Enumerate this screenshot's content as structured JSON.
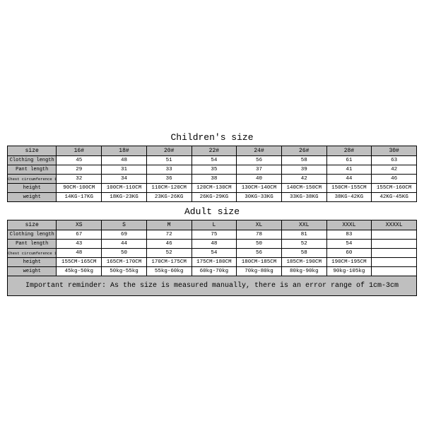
{
  "colors": {
    "header_bg": "#bfbfbf",
    "border": "#000000",
    "background": "#ffffff"
  },
  "children": {
    "title": "Children's size",
    "headers": [
      "size",
      "16#",
      "18#",
      "20#",
      "22#",
      "24#",
      "26#",
      "28#",
      "30#"
    ],
    "rows": [
      {
        "label": "Clothing length",
        "cells": [
          "45",
          "48",
          "51",
          "54",
          "56",
          "58",
          "61",
          "63"
        ]
      },
      {
        "label": "Pant length",
        "cells": [
          "29",
          "31",
          "33",
          "35",
          "37",
          "39",
          "41",
          "42"
        ]
      },
      {
        "label": "Chest circumference 1/2",
        "cells": [
          "32",
          "34",
          "36",
          "38",
          "40",
          "42",
          "44",
          "46"
        ],
        "small": true
      },
      {
        "label": "height",
        "cells": [
          "90CM-100CM",
          "100CM-110CM",
          "110CM-120CM",
          "120CM-130CM",
          "130CM-140CM",
          "140CM-150CM",
          "150CM-155CM",
          "155CM-160CM"
        ]
      },
      {
        "label": "weight",
        "cells": [
          "14KG-17KG",
          "18KG-23KG",
          "23KG-26KG",
          "26KG-29KG",
          "30KG-33KG",
          "33KG-38KG",
          "38KG-42KG",
          "42KG-45KG"
        ]
      }
    ]
  },
  "adult": {
    "title": "Adult size",
    "headers": [
      "size",
      "XS",
      "S",
      "M",
      "L",
      "XL",
      "XXL",
      "XXXL",
      "XXXXL"
    ],
    "rows": [
      {
        "label": "Clothing length",
        "cells": [
          "67",
          "69",
          "72",
          "75",
          "78",
          "81",
          "83",
          ""
        ]
      },
      {
        "label": "Pant length",
        "cells": [
          "43",
          "44",
          "46",
          "48",
          "50",
          "52",
          "54",
          ""
        ]
      },
      {
        "label": "Chest circumference 1/2",
        "cells": [
          "48",
          "50",
          "52",
          "54",
          "56",
          "58",
          "60",
          ""
        ],
        "small": true
      },
      {
        "label": "height",
        "cells": [
          "155CM-165CM",
          "165CM-170CM",
          "170CM-175CM",
          "175CM-180CM",
          "180CM-185CM",
          "185CM-190CM",
          "190CM-195CM",
          ""
        ]
      },
      {
        "label": "weight",
        "cells": [
          "45kg-50kg",
          "50kg-55kg",
          "55kg-60kg",
          "60kg-70kg",
          "70kg-80kg",
          "80kg-90kg",
          "90kg-105kg",
          ""
        ]
      }
    ]
  },
  "reminder": "Important reminder: As the size is measured manually, there is an error range of 1cm-3cm"
}
